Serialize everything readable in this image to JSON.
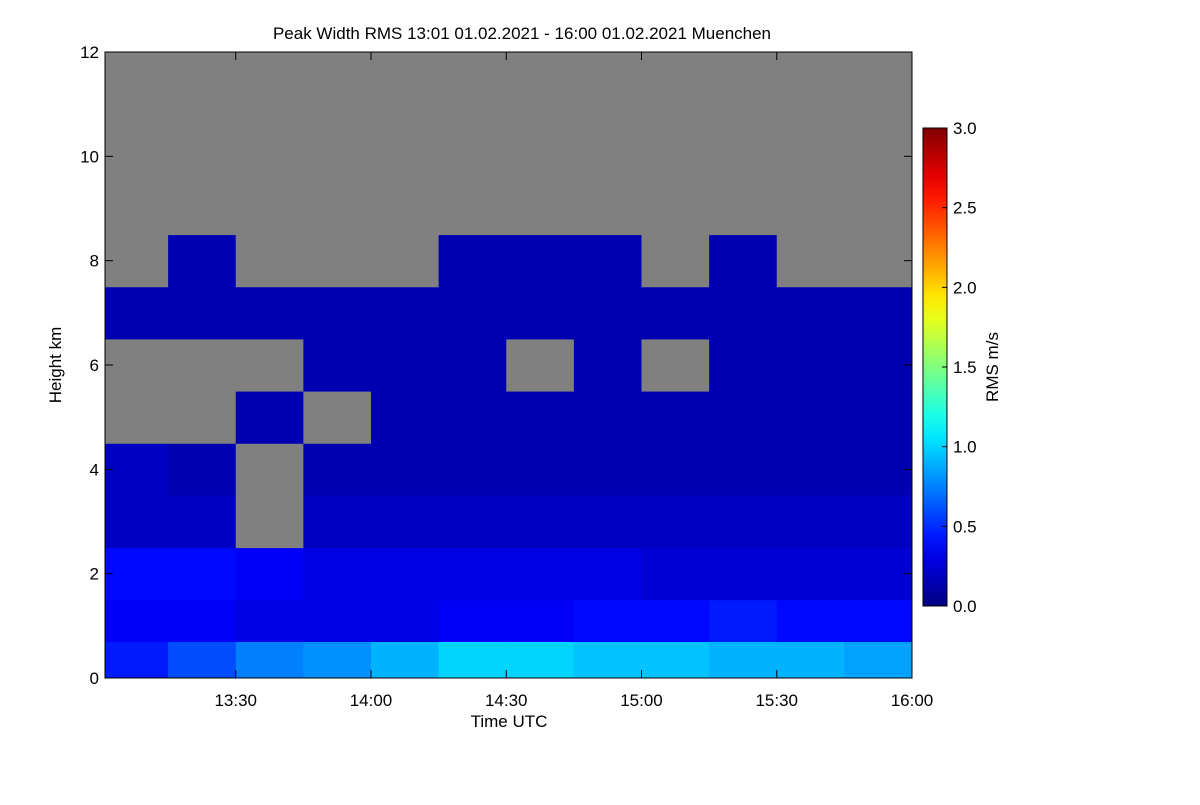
{
  "chart_data": {
    "type": "heatmap",
    "title": "Peak Width RMS   13:01 01.02.2021 - 16:00 01.02.2021 Muenchen",
    "xlabel": "Time UTC",
    "ylabel": "Height km",
    "colorbar_label": "RMS m/s",
    "colormap": "jet",
    "nan_color": "#808080",
    "xlim": [
      781,
      960
    ],
    "xticks": [
      {
        "value": 810,
        "label": "13:30"
      },
      {
        "value": 840,
        "label": "14:00"
      },
      {
        "value": 870,
        "label": "14:30"
      },
      {
        "value": 900,
        "label": "15:00"
      },
      {
        "value": 930,
        "label": "15:30"
      },
      {
        "value": 960,
        "label": "16:00"
      }
    ],
    "ylim": [
      0,
      12
    ],
    "yticks": [
      0,
      2,
      4,
      6,
      8,
      10,
      12
    ],
    "clim": [
      0,
      3
    ],
    "cticks": [
      {
        "value": 0,
        "label": "0.0"
      },
      {
        "value": 0.5,
        "label": "0.5"
      },
      {
        "value": 1,
        "label": "1.0"
      },
      {
        "value": 1.5,
        "label": "1.5"
      },
      {
        "value": 2,
        "label": "2.0"
      },
      {
        "value": 2.5,
        "label": "2.5"
      },
      {
        "value": 3,
        "label": "3.0"
      }
    ],
    "xbins": [
      781,
      795,
      810,
      825,
      840,
      855,
      870,
      885,
      900,
      915,
      930,
      945,
      960
    ],
    "ybins": [
      0,
      0.7,
      1.5,
      2.5,
      3.5,
      4.5,
      5.5,
      6.5,
      7.5,
      8.5,
      12
    ],
    "values": [
      [
        0.45,
        0.6,
        0.75,
        0.8,
        0.9,
        1.0,
        1.0,
        0.95,
        0.95,
        0.9,
        0.9,
        0.85
      ],
      [
        0.35,
        0.35,
        0.3,
        0.3,
        0.3,
        0.35,
        0.35,
        0.4,
        0.4,
        0.45,
        0.4,
        0.4
      ],
      [
        0.4,
        0.4,
        0.35,
        0.3,
        0.3,
        0.3,
        0.3,
        0.3,
        0.25,
        0.25,
        0.25,
        0.25
      ],
      [
        0.2,
        0.2,
        null,
        0.2,
        0.2,
        0.2,
        0.2,
        0.2,
        0.2,
        0.2,
        0.2,
        0.2
      ],
      [
        0.2,
        0.15,
        null,
        0.15,
        0.15,
        0.15,
        0.15,
        0.15,
        0.15,
        0.15,
        0.15,
        0.15
      ],
      [
        null,
        null,
        0.15,
        null,
        0.15,
        0.15,
        0.15,
        0.15,
        0.15,
        0.15,
        0.15,
        0.15
      ],
      [
        null,
        null,
        null,
        0.15,
        0.15,
        0.15,
        null,
        0.15,
        null,
        0.15,
        0.15,
        0.15
      ],
      [
        0.15,
        0.15,
        0.15,
        0.15,
        0.15,
        0.15,
        0.15,
        0.15,
        0.15,
        0.15,
        0.15,
        0.15
      ],
      [
        null,
        0.15,
        null,
        null,
        null,
        0.15,
        0.15,
        0.15,
        null,
        0.15,
        null,
        null
      ],
      [
        null,
        null,
        null,
        null,
        null,
        null,
        null,
        null,
        null,
        null,
        null,
        null
      ]
    ]
  }
}
